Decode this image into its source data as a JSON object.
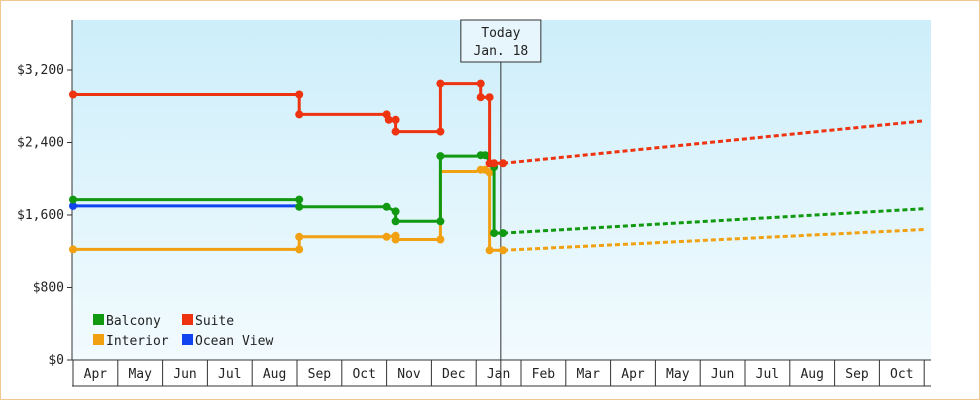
{
  "chart_data": {
    "type": "line",
    "title": "",
    "xlabel": "",
    "ylabel": "",
    "ylim": [
      0,
      3200
    ],
    "yticks": [
      0,
      800,
      1600,
      2400,
      3200
    ],
    "ytick_labels": [
      "$0",
      "$800",
      "$1,600",
      "$2,400",
      "$3,200"
    ],
    "x_months": [
      "Apr",
      "May",
      "Jun",
      "Jul",
      "Aug",
      "Sep",
      "Oct",
      "Nov",
      "Dec",
      "Jan",
      "Feb",
      "Mar",
      "Apr",
      "May",
      "Jun",
      "Jul",
      "Aug",
      "Sep",
      "Oct"
    ],
    "today": {
      "line1": "Today",
      "line2": "Jan. 18",
      "month_index": 9.55
    },
    "grid": false,
    "legend_position": "bottom-left",
    "series": [
      {
        "name": "Balcony",
        "color": "#119911",
        "points": [
          [
            0.0,
            1770
          ],
          [
            5.05,
            1770
          ],
          [
            5.05,
            1690
          ],
          [
            7.0,
            1690
          ],
          [
            7.2,
            1640
          ],
          [
            7.2,
            1530
          ],
          [
            8.2,
            1530
          ],
          [
            8.2,
            2250
          ],
          [
            9.0,
            2250
          ],
          [
            9.1,
            2260
          ],
          [
            9.2,
            2260
          ],
          [
            9.4,
            2130
          ],
          [
            9.4,
            1400
          ],
          [
            9.6,
            1400
          ]
        ],
        "markers": [
          [
            0.0,
            1770
          ],
          [
            5.05,
            1770
          ],
          [
            5.05,
            1690
          ],
          [
            7.0,
            1690
          ],
          [
            7.2,
            1640
          ],
          [
            7.2,
            1530
          ],
          [
            8.2,
            1530
          ],
          [
            8.2,
            2250
          ],
          [
            9.1,
            2260
          ],
          [
            9.2,
            2260
          ],
          [
            9.4,
            2130
          ],
          [
            9.4,
            1400
          ],
          [
            9.6,
            1400
          ]
        ],
        "forecast": [
          [
            9.6,
            1400
          ],
          [
            19.0,
            1670
          ]
        ]
      },
      {
        "name": "Suite",
        "color": "#ee3311",
        "points": [
          [
            0.0,
            2930
          ],
          [
            5.05,
            2930
          ],
          [
            5.05,
            2710
          ],
          [
            7.0,
            2710
          ],
          [
            7.05,
            2650
          ],
          [
            7.2,
            2650
          ],
          [
            7.2,
            2520
          ],
          [
            8.2,
            2520
          ],
          [
            8.2,
            3050
          ],
          [
            9.1,
            3050
          ],
          [
            9.1,
            2900
          ],
          [
            9.3,
            2900
          ],
          [
            9.3,
            2170
          ],
          [
            9.6,
            2170
          ]
        ],
        "markers": [
          [
            0.0,
            2930
          ],
          [
            5.05,
            2930
          ],
          [
            5.05,
            2710
          ],
          [
            7.0,
            2710
          ],
          [
            7.05,
            2650
          ],
          [
            7.2,
            2650
          ],
          [
            7.2,
            2520
          ],
          [
            8.2,
            2520
          ],
          [
            8.2,
            3050
          ],
          [
            9.1,
            3050
          ],
          [
            9.1,
            2900
          ],
          [
            9.3,
            2900
          ],
          [
            9.3,
            2170
          ],
          [
            9.4,
            2170
          ],
          [
            9.6,
            2170
          ]
        ],
        "forecast": [
          [
            9.6,
            2170
          ],
          [
            19.0,
            2640
          ]
        ]
      },
      {
        "name": "Interior",
        "color": "#f0a010",
        "points": [
          [
            0.0,
            1220
          ],
          [
            5.05,
            1220
          ],
          [
            5.05,
            1360
          ],
          [
            7.0,
            1360
          ],
          [
            7.2,
            1370
          ],
          [
            7.2,
            1330
          ],
          [
            8.2,
            1330
          ],
          [
            8.2,
            2080
          ],
          [
            9.0,
            2080
          ],
          [
            9.1,
            2100
          ],
          [
            9.2,
            2100
          ],
          [
            9.3,
            2070
          ],
          [
            9.3,
            1210
          ],
          [
            9.6,
            1210
          ]
        ],
        "markers": [
          [
            0.0,
            1220
          ],
          [
            5.05,
            1220
          ],
          [
            5.05,
            1360
          ],
          [
            7.0,
            1360
          ],
          [
            7.2,
            1370
          ],
          [
            7.2,
            1330
          ],
          [
            8.2,
            1330
          ],
          [
            9.1,
            2100
          ],
          [
            9.2,
            2100
          ],
          [
            9.3,
            2070
          ],
          [
            9.3,
            1210
          ],
          [
            9.6,
            1210
          ]
        ],
        "forecast": [
          [
            9.6,
            1210
          ],
          [
            19.0,
            1440
          ]
        ]
      },
      {
        "name": "Ocean View",
        "color": "#1144ee",
        "points": [
          [
            0.0,
            1700
          ],
          [
            5.05,
            1700
          ]
        ],
        "markers": [
          [
            0.0,
            1700
          ]
        ],
        "forecast": []
      }
    ]
  }
}
